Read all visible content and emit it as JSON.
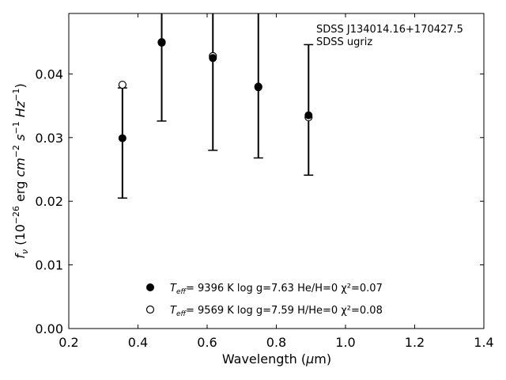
{
  "chart_data": {
    "type": "scatter",
    "title": "",
    "xlabel": "Wavelength (μm)",
    "ylabel": "fν (10⁻²⁶ erg cm⁻² s⁻¹ Hz⁻¹)",
    "xlim": [
      0.2,
      1.4
    ],
    "ylim": [
      0.0,
      0.0495
    ],
    "xticks": [
      0.2,
      0.4,
      0.6,
      0.8,
      1.0,
      1.2,
      1.4
    ],
    "xtick_labels": [
      "0.2",
      "0.4",
      "0.6",
      "0.8",
      "1.0",
      "1.2",
      "1.4"
    ],
    "yticks": [
      0.0,
      0.01,
      0.02,
      0.03,
      0.04
    ],
    "ytick_labels": [
      "0.00",
      "0.01",
      "0.02",
      "0.03",
      "0.04"
    ],
    "grid": false,
    "annotation_lines": [
      "SDSS J134014.16+170427.5",
      "SDSS ugriz"
    ],
    "observed": {
      "x": [
        0.3551,
        0.4686,
        0.6166,
        0.748,
        0.8932
      ],
      "y": [
        0.0299,
        0.0449,
        0.0425,
        0.0379,
        0.0335
      ],
      "y_low": [
        0.0205,
        0.0326,
        0.028,
        0.0268,
        0.0241
      ],
      "y_high": [
        0.0378,
        0.056,
        0.056,
        0.056,
        0.0446
      ]
    },
    "series": [
      {
        "marker": "filled-circle",
        "color": "#000000",
        "label_T": "T",
        "label_sub": "eff",
        "label_rest": "=  9396 K  log g=7.63  He/H=0  χ²=0.07",
        "x": [
          0.3551,
          0.4686,
          0.6166,
          0.748,
          0.8932
        ],
        "y": [
          0.0299,
          0.0449,
          0.0425,
          0.0379,
          0.0335
        ]
      },
      {
        "marker": "open-circle",
        "color": "#000000",
        "label_T": "T",
        "label_sub": "eff",
        "label_rest": "=  9569 K  log g=7.59  H/He=0  χ²=0.08",
        "x": [
          0.3551,
          0.4686,
          0.6166,
          0.748,
          0.8932
        ],
        "y": [
          0.0383,
          0.045,
          0.0428,
          0.038,
          0.0332
        ]
      }
    ]
  }
}
